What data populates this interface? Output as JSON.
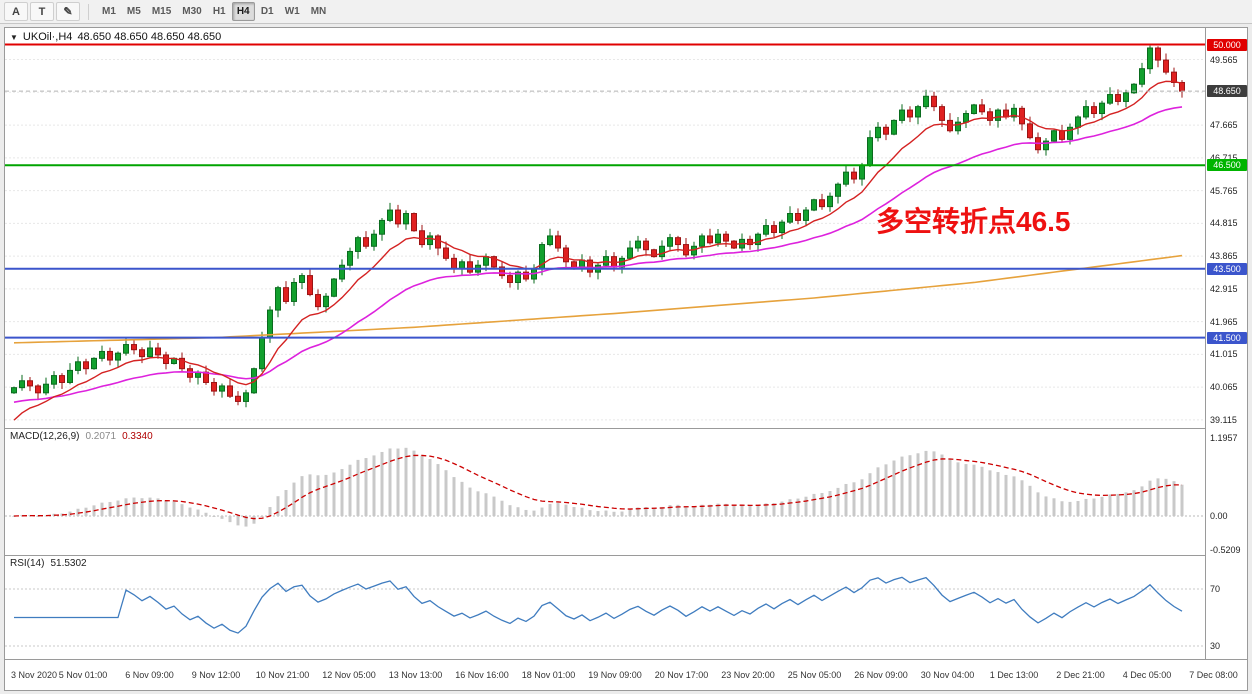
{
  "toolbar": {
    "tool_buttons": [
      {
        "name": "a-tool",
        "label": "A"
      },
      {
        "name": "text-tool",
        "label": "T"
      },
      {
        "name": "draw-tool",
        "label": "✎"
      }
    ],
    "timeframes": [
      "M1",
      "M5",
      "M15",
      "M30",
      "H1",
      "H4",
      "D1",
      "W1",
      "MN"
    ],
    "active_timeframe": "H4"
  },
  "chart": {
    "symbol_title": "UKOil·,H4",
    "ohlc_text": "48.650 48.650 48.650 48.650",
    "annotation": "多空转折点46.5",
    "price_axis": {
      "labels": [
        "49.565",
        "47.665",
        "46.715",
        "45.765",
        "44.815",
        "43.865",
        "42.915",
        "41.965",
        "41.015",
        "40.065",
        "39.115"
      ],
      "gridline_extra": [
        48.615
      ],
      "badges": [
        {
          "text": "50.000",
          "price": 50.0,
          "bg": "#e00000",
          "fg": "#ffffff"
        },
        {
          "text": "48.650",
          "price": 48.65,
          "bg": "#3d3d3d",
          "fg": "#ffffff"
        },
        {
          "text": "46.500",
          "price": 46.5,
          "bg": "#00b400",
          "fg": "#ffffff"
        },
        {
          "text": "43.500",
          "price": 43.5,
          "bg": "#3b55cc",
          "fg": "#ffffff"
        },
        {
          "text": "41.500",
          "price": 41.5,
          "bg": "#3b55cc",
          "fg": "#ffffff"
        }
      ]
    },
    "hlines": [
      {
        "price": 50.0,
        "color": "#e00000",
        "width": 2,
        "style": "solid"
      },
      {
        "price": 46.5,
        "color": "#00a400",
        "width": 2,
        "style": "solid"
      },
      {
        "price": 43.5,
        "color": "#3b55cc",
        "width": 2,
        "style": "solid"
      },
      {
        "price": 41.5,
        "color": "#3b55cc",
        "width": 2,
        "style": "solid"
      },
      {
        "price": 48.65,
        "color": "#b4b4b4",
        "width": 1,
        "style": "dash"
      }
    ]
  },
  "chart_data": {
    "type": "candlestick",
    "symbol": "UKOil",
    "timeframe": "H4",
    "ylim": [
      38.88,
      50.48
    ],
    "first_open": 39.9,
    "closes": [
      40.05,
      40.25,
      40.1,
      39.9,
      40.15,
      40.4,
      40.2,
      40.55,
      40.8,
      40.6,
      40.9,
      41.1,
      40.85,
      41.05,
      41.3,
      41.15,
      40.95,
      41.2,
      41.0,
      40.75,
      40.9,
      40.6,
      40.35,
      40.5,
      40.2,
      39.95,
      40.1,
      39.8,
      39.65,
      39.9,
      40.6,
      41.5,
      42.3,
      42.95,
      42.55,
      43.1,
      43.3,
      42.75,
      42.4,
      42.7,
      43.2,
      43.6,
      44.0,
      44.4,
      44.15,
      44.5,
      44.9,
      45.2,
      44.8,
      45.1,
      44.6,
      44.2,
      44.45,
      44.1,
      43.8,
      43.5,
      43.7,
      43.4,
      43.6,
      43.85,
      43.55,
      43.3,
      43.1,
      43.4,
      43.2,
      43.5,
      44.2,
      44.45,
      44.1,
      43.7,
      43.5,
      43.75,
      43.4,
      43.6,
      43.85,
      43.55,
      43.8,
      44.1,
      44.3,
      44.05,
      43.85,
      44.15,
      44.4,
      44.2,
      43.9,
      44.15,
      44.45,
      44.25,
      44.5,
      44.3,
      44.1,
      44.35,
      44.2,
      44.5,
      44.75,
      44.55,
      44.85,
      45.1,
      44.9,
      45.2,
      45.5,
      45.3,
      45.6,
      45.95,
      46.3,
      46.1,
      46.5,
      47.3,
      47.6,
      47.4,
      47.8,
      48.1,
      47.9,
      48.2,
      48.5,
      48.2,
      47.8,
      47.5,
      47.75,
      48.0,
      48.25,
      48.05,
      47.8,
      48.1,
      47.9,
      48.15,
      47.7,
      47.3,
      46.95,
      47.2,
      47.5,
      47.25,
      47.6,
      47.9,
      48.2,
      48.0,
      48.3,
      48.55,
      48.35,
      48.6,
      48.85,
      49.3,
      49.9,
      49.55,
      49.2,
      48.9,
      48.65
    ],
    "colors": {
      "up": "#12a02e",
      "up_border": "#0a6b1e",
      "down": "#e02020",
      "down_border": "#9c1414"
    },
    "moving_averages": [
      {
        "name": "ma-mid",
        "period": 30,
        "seed": 39.6,
        "color": "#dd22dd",
        "width": 1.6
      },
      {
        "name": "ma-fast",
        "period": 10,
        "seed": 38.9,
        "color": "#d42222",
        "width": 1.4
      }
    ],
    "ma_long_points": [
      [
        0,
        41.35
      ],
      [
        25,
        41.5
      ],
      [
        50,
        41.8
      ],
      [
        75,
        42.2
      ],
      [
        100,
        42.65
      ],
      [
        120,
        43.1
      ],
      [
        146,
        43.88
      ]
    ],
    "ma_long_color": "#e6a23c",
    "macd": {
      "name": "MACD(12,26,9)",
      "main_value": "0.2071",
      "signal_value": "0.3340",
      "axis_max": "1.1957",
      "axis_zero": "0.00",
      "axis_min": "-0.5209",
      "hist_color": "#c9c9c9",
      "signal_color": "#cc0000"
    },
    "rsi": {
      "name": "RSI(14)",
      "value": "51.5302",
      "levels": [
        70,
        30
      ],
      "color": "#3f7cbf"
    },
    "time_labels": [
      "3 Nov 2020",
      "5 Nov 01:00",
      "6 Nov 09:00",
      "9 Nov 12:00",
      "10 Nov 21:00",
      "12 Nov 05:00",
      "13 Nov 13:00",
      "16 Nov 16:00",
      "18 Nov 01:00",
      "19 Nov 09:00",
      "20 Nov 17:00",
      "23 Nov 20:00",
      "25 Nov 05:00",
      "26 Nov 09:00",
      "30 Nov 04:00",
      "1 Dec 13:00",
      "2 Dec 21:00",
      "4 Dec 05:00",
      "7 Dec 08:00"
    ]
  }
}
